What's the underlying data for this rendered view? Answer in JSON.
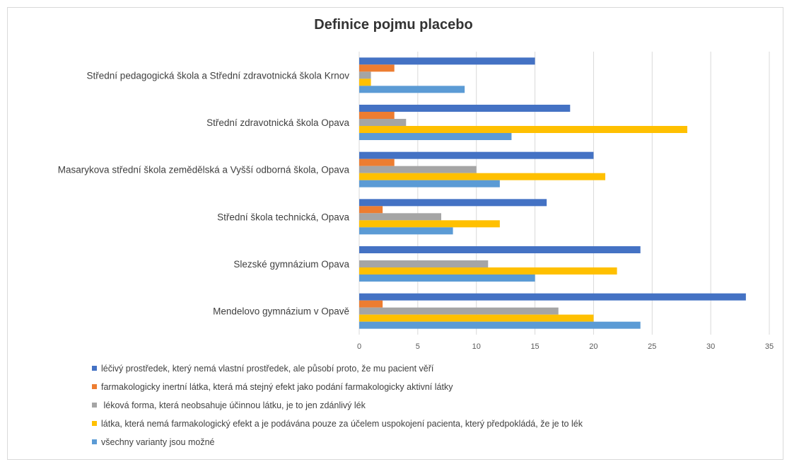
{
  "chart_data": {
    "type": "bar",
    "orientation": "horizontal",
    "title": "Definice pojmu placebo",
    "categories": [
      "Střední pedagogická škola a Střední zdravotnická škola Krnov",
      "Střední zdravotnická škola Opava",
      "Masarykova střední škola zemědělská a Vyšší odborná škola, Opava",
      "Střední škola technická, Opava",
      "Slezské gymnázium Opava",
      "Mendelovo gymnázium v Opavě"
    ],
    "series": [
      {
        "name": "léčivý prostředek, který nemá vlastní prostředek, ale působí proto, že mu pacient věří",
        "color": "#4472C4",
        "values": [
          15,
          18,
          20,
          16,
          24,
          33
        ]
      },
      {
        "name": "farmakologicky inertní látka, která má stejný efekt jako podání farmakologicky aktivní látky",
        "color": "#ED7D31",
        "values": [
          3,
          3,
          3,
          2,
          0,
          2
        ]
      },
      {
        "name": " léková forma, která neobsahuje účinnou látku, je to jen zdánlivý lék",
        "color": "#A5A5A5",
        "values": [
          1,
          4,
          10,
          7,
          11,
          17
        ]
      },
      {
        "name": "látka, která nemá farmakologický efekt a je podávána pouze za účelem uspokojení pacienta, který předpokládá, že je to lék",
        "color": "#FFC000",
        "values": [
          1,
          28,
          21,
          12,
          22,
          20
        ]
      },
      {
        "name": "všechny varianty jsou možné",
        "color": "#5B9BD5",
        "values": [
          9,
          13,
          12,
          8,
          15,
          24
        ]
      }
    ],
    "xlim": [
      0,
      35
    ],
    "xticks": [
      0,
      5,
      10,
      15,
      20,
      25,
      30,
      35
    ],
    "grid": true,
    "legend_position": "bottom"
  }
}
